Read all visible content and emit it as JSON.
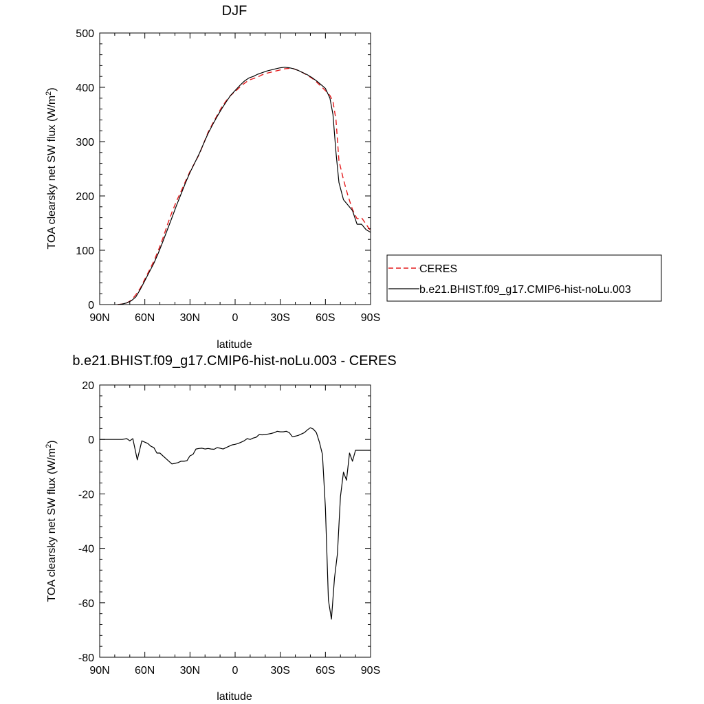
{
  "chart_data": [
    {
      "type": "line",
      "title": "DJF",
      "xlabel": "latitude",
      "ylabel_main": "TOA clearsky net SW flux (W/m",
      "ylabel_sup": "2",
      "ylabel_close": ")",
      "xlim": [
        90,
        -90
      ],
      "ylim": [
        0,
        500
      ],
      "x_tick_values": [
        90,
        60,
        30,
        0,
        -30,
        -60,
        -90
      ],
      "x_tick_labels": [
        "90N",
        "60N",
        "30N",
        "0",
        "30S",
        "60S",
        "90S"
      ],
      "y_tick_values": [
        0,
        100,
        200,
        300,
        400,
        500
      ],
      "y_tick_labels": [
        "0",
        "100",
        "200",
        "300",
        "400",
        "500"
      ],
      "legend_placement": "right",
      "series": [
        {
          "name": "CERES",
          "color": "#e41a1c",
          "style": "dashed",
          "x": [
            78,
            75,
            72,
            69,
            66,
            63,
            60,
            57,
            54,
            51,
            48,
            45,
            42,
            39,
            36,
            33,
            30,
            27,
            24,
            21,
            18,
            15,
            12,
            9,
            6,
            3,
            0,
            -3,
            -6,
            -9,
            -12,
            -15,
            -18,
            -21,
            -24,
            -27,
            -30,
            -33,
            -36,
            -39,
            -42,
            -45,
            -48,
            -51,
            -54,
            -57,
            -60,
            -63,
            -65,
            -67,
            -69,
            -72,
            -75,
            -78,
            -81,
            -84,
            -87,
            -90
          ],
          "y": [
            0,
            1,
            3,
            8,
            18,
            30,
            47,
            63,
            80,
            100,
            122,
            147,
            170,
            190,
            208,
            227,
            245,
            260,
            276,
            296,
            317,
            333,
            348,
            363,
            375,
            385,
            392,
            400,
            407,
            413,
            416,
            419,
            423,
            426,
            428,
            430,
            432,
            434,
            435,
            434,
            431,
            427,
            422,
            417,
            410,
            402,
            394,
            385,
            374,
            340,
            265,
            230,
            200,
            175,
            158,
            160,
            148,
            136
          ]
        },
        {
          "name": "b.e21.BHIST.f09_g17.CMIP6-hist-noLu.003",
          "color": "#000000",
          "style": "solid",
          "x": [
            78,
            75,
            72,
            69,
            66,
            63,
            60,
            57,
            54,
            51,
            48,
            45,
            42,
            39,
            36,
            33,
            30,
            27,
            24,
            21,
            18,
            15,
            12,
            9,
            6,
            3,
            0,
            -3,
            -6,
            -9,
            -12,
            -15,
            -18,
            -21,
            -24,
            -27,
            -30,
            -33,
            -36,
            -39,
            -42,
            -45,
            -48,
            -51,
            -54,
            -57,
            -60,
            -63,
            -65,
            -67,
            -69,
            -72,
            -75,
            -78,
            -81,
            -84,
            -87,
            -90
          ],
          "y": [
            0,
            1,
            3,
            7,
            14,
            28,
            44,
            60,
            76,
            95,
            116,
            138,
            160,
            182,
            203,
            224,
            243,
            260,
            277,
            296,
            315,
            331,
            346,
            360,
            373,
            385,
            394,
            403,
            411,
            417,
            420,
            424,
            427,
            430,
            432,
            434,
            436,
            437,
            436,
            434,
            431,
            427,
            423,
            418,
            412,
            405,
            398,
            380,
            350,
            280,
            225,
            193,
            183,
            173,
            148,
            148,
            138,
            133
          ]
        }
      ]
    },
    {
      "type": "line",
      "title": "b.e21.BHIST.f09_g17.CMIP6-hist-noLu.003 - CERES",
      "xlabel": "latitude",
      "ylabel_main": "TOA clearsky net SW flux (W/m",
      "ylabel_sup": "2",
      "ylabel_close": ")",
      "xlim": [
        90,
        -90
      ],
      "ylim": [
        -80,
        20
      ],
      "x_tick_values": [
        90,
        60,
        30,
        0,
        -30,
        -60,
        -90
      ],
      "x_tick_labels": [
        "90N",
        "60N",
        "30N",
        "0",
        "30S",
        "60S",
        "90S"
      ],
      "y_tick_values": [
        -80,
        -60,
        -40,
        -20,
        0,
        20
      ],
      "y_tick_labels": [
        "-80",
        "-60",
        "-40",
        "-20",
        "0",
        "20"
      ],
      "series": [
        {
          "color": "#000000",
          "style": "solid",
          "x": [
            90,
            85,
            80,
            75,
            72,
            70,
            68,
            65,
            62,
            60,
            58,
            56,
            54,
            52,
            50,
            48,
            46,
            44,
            42,
            40,
            38,
            36,
            34,
            32,
            30,
            28,
            26,
            24,
            22,
            20,
            18,
            16,
            14,
            12,
            10,
            8,
            6,
            4,
            2,
            0,
            -2,
            -4,
            -6,
            -8,
            -10,
            -12,
            -14,
            -16,
            -18,
            -20,
            -22,
            -24,
            -26,
            -28,
            -30,
            -32,
            -34,
            -36,
            -38,
            -40,
            -42,
            -44,
            -46,
            -48,
            -50,
            -52,
            -54,
            -56,
            -58,
            -60,
            -62,
            -64,
            -66,
            -68,
            -70,
            -72,
            -74,
            -76,
            -78,
            -80,
            -82,
            -84,
            -86,
            -88,
            -90
          ],
          "y": [
            0,
            0,
            0,
            0,
            0.3,
            -0.5,
            0.3,
            -7.5,
            -0.5,
            -1,
            -1.5,
            -2.5,
            -3,
            -5,
            -5,
            -6,
            -7,
            -8,
            -9,
            -8.8,
            -8.5,
            -8,
            -8,
            -7.8,
            -6,
            -5.5,
            -3.5,
            -3.3,
            -3.2,
            -3.5,
            -3.3,
            -3.5,
            -3.6,
            -3,
            -3.2,
            -3.5,
            -3,
            -2.5,
            -2,
            -1.8,
            -1.5,
            -1,
            -0.5,
            0.3,
            0,
            0.5,
            0.8,
            1.8,
            1.7,
            1.8,
            2,
            2.2,
            2.5,
            3,
            2.8,
            2.8,
            3,
            2.5,
            1,
            1.2,
            1.5,
            2,
            2.5,
            3.5,
            4.3,
            3.8,
            2.5,
            -1,
            -5.5,
            -25,
            -59,
            -66,
            -51,
            -42,
            -21,
            -12,
            -15,
            -5,
            -8,
            -4,
            -4,
            -4,
            -4,
            -4,
            -4
          ]
        }
      ]
    }
  ]
}
